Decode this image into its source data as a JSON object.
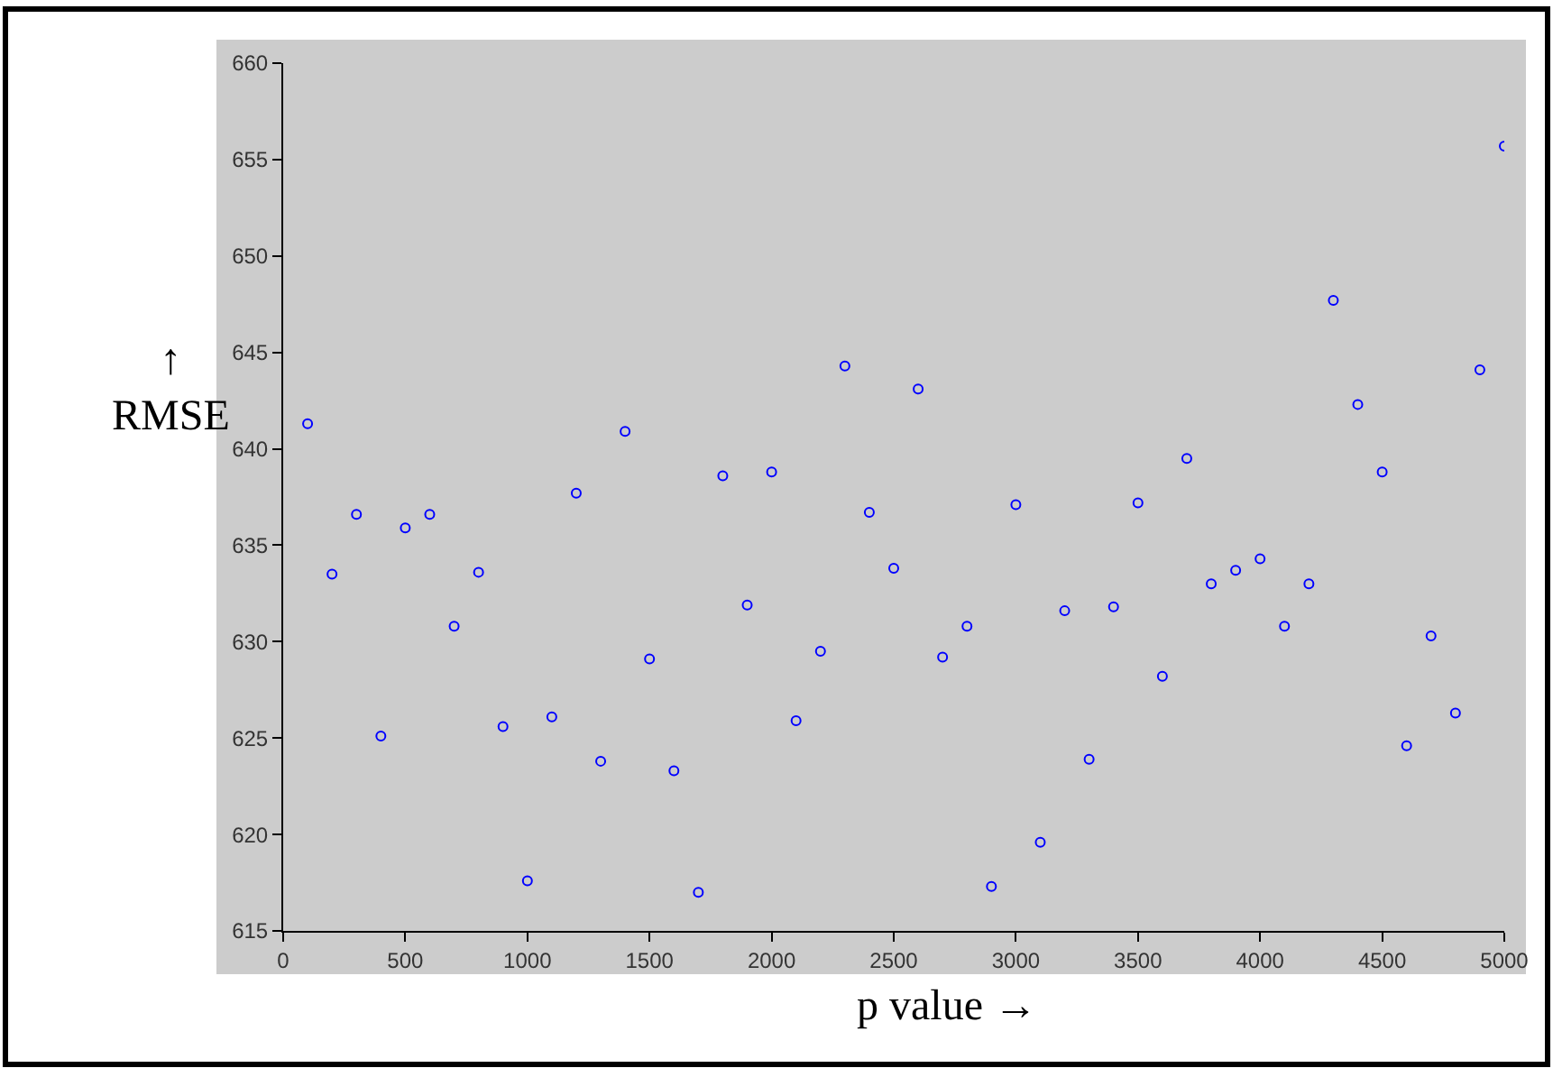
{
  "chart_data": {
    "type": "scatter",
    "xlabel": "p value →",
    "ylabel": "↑\nRMSE",
    "x": [
      100,
      200,
      300,
      400,
      500,
      600,
      700,
      800,
      900,
      1000,
      1100,
      1200,
      1300,
      1400,
      1500,
      1600,
      1700,
      1800,
      1900,
      2000,
      2100,
      2200,
      2300,
      2400,
      2500,
      2600,
      2700,
      2800,
      2900,
      3000,
      3100,
      3200,
      3300,
      3400,
      3500,
      3600,
      3700,
      3800,
      3900,
      4000,
      4100,
      4200,
      4300,
      4400,
      4500,
      4600,
      4700,
      4800,
      4900,
      5000
    ],
    "series": [
      {
        "color": "#0000ff",
        "values": [
          641.3,
          633.5,
          636.6,
          625.1,
          635.9,
          636.6,
          630.8,
          633.6,
          625.6,
          617.6,
          626.1,
          637.7,
          623.8,
          640.9,
          629.1,
          623.3,
          617.0,
          638.6,
          631.9,
          638.8,
          625.9,
          629.5,
          644.3,
          636.7,
          633.8,
          643.1,
          629.2,
          630.8,
          617.3,
          637.1,
          619.6,
          631.6,
          623.9,
          631.8,
          637.2,
          628.2,
          639.5,
          633.0,
          633.7,
          634.3,
          630.8,
          633.0,
          647.7,
          642.3,
          638.8,
          624.6,
          630.3,
          626.3,
          644.1,
          655.7
        ]
      }
    ],
    "marker": "circle",
    "xlim": [
      0,
      5000
    ],
    "ylim": [
      615,
      660
    ],
    "xticks": [
      0,
      500,
      1000,
      1500,
      2000,
      2500,
      3000,
      3500,
      4000,
      4500,
      5000
    ],
    "yticks": [
      615,
      620,
      625,
      630,
      635,
      640,
      645,
      650,
      655,
      660
    ],
    "grid": false,
    "legend": false
  }
}
